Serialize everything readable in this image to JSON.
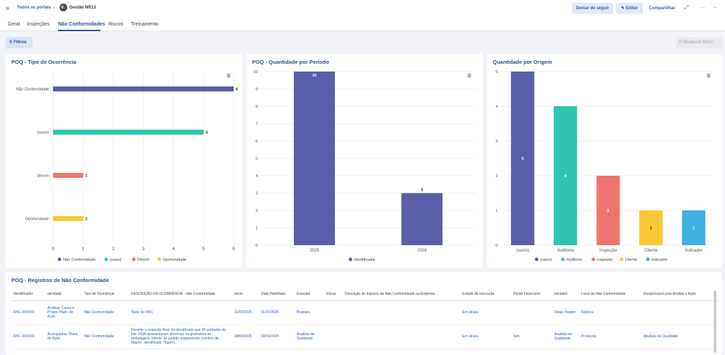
{
  "topbar": {
    "breadcrumb_root": "Todos os portais",
    "breadcrumb_current": "Gestão NR13",
    "follow_label": "Deixar de seguir",
    "edit_label": "Editar",
    "share_label": "Compartilhar"
  },
  "tabs": [
    "Geral",
    "Inspeções",
    "Não Conformidades",
    "Riscos",
    "Treinamento"
  ],
  "active_tab": "Não Conformidades",
  "toolbar": {
    "filters_label": "Filtros",
    "restore_label": "Restaurar filtros"
  },
  "chart_data": [
    {
      "type": "bar",
      "orientation": "horizontal",
      "title": "POQ - Tipo de Ocorrência",
      "categories": [
        "Não Conformidade",
        "(vazio)",
        "Desvio",
        "Oportunidade"
      ],
      "values": [
        6,
        5,
        1,
        1
      ],
      "colors": [
        "#5b5ea8",
        "#2fc6b0",
        "#ef7670",
        "#fbc633"
      ],
      "xlim": [
        0,
        6
      ],
      "xticks": [
        0,
        1,
        2,
        3,
        4,
        5,
        6
      ],
      "legend": [
        "Não Conformidade",
        "(vazio)",
        "Desvio",
        "Oportunidade"
      ],
      "legend_position": "bottom",
      "grid": true
    },
    {
      "type": "bar",
      "title": "POQ - Quantidade por Período",
      "categories": [
        "2025",
        "2026"
      ],
      "series": [
        {
          "name": "Identificador",
          "values": [
            10,
            3
          ]
        }
      ],
      "colors": [
        "#5b5ea8"
      ],
      "ylim": [
        0,
        10
      ],
      "yticks": [
        0,
        1,
        2,
        3,
        4,
        5,
        6,
        7,
        8,
        9,
        10
      ],
      "legend_position": "bottom",
      "grid": true
    },
    {
      "type": "bar",
      "title": "Quantidade por Origem",
      "categories": [
        "(vazio)",
        "Auditoria",
        "Inspeção",
        "Cliente",
        "Indicador"
      ],
      "values": [
        5,
        4,
        2,
        1,
        1
      ],
      "colors": [
        "#5b5ea8",
        "#2fc6b0",
        "#ef7670",
        "#fbc633",
        "#3fb1e3"
      ],
      "ylim": [
        0,
        5
      ],
      "yticks": [
        0,
        1,
        2,
        3,
        4,
        5
      ],
      "legend": [
        "(vazio)",
        "Auditoria",
        "Inspeção",
        "Cliente",
        "Indicador"
      ],
      "legend_position": "bottom",
      "grid": true
    }
  ],
  "table": {
    "title": "POQ - Registros de Não Conformidade",
    "columns": [
      "Identificador",
      "atividade",
      "Tipo de Ocorrência",
      "DESCRIÇÃO DA OCORRÊNCIA - Não Conformidade",
      "Início",
      "Data Habilitada",
      "Executor",
      "Eficaz",
      "Descrição do Impacto da Não Conformidade na Empresa",
      "Estado da execução",
      "Perda Financeira",
      "Iniciador",
      "Local da Não Conformidade",
      "Responsavel pela Análise e Ação"
    ],
    "rows": [
      [
        "RNC-000003",
        "Analisar Causa e Propor Plano de Ação",
        "Não Conformidade",
        "Teste de RNC",
        "11/03/2025",
        "11/03/2025",
        "Brasiara",
        "",
        "",
        "Em atraso",
        "",
        "Diogo Pappin",
        "Fábrica",
        ""
      ],
      [
        "RNC-000019",
        "Acompanhar Plano de Ação",
        "Não Conformidade",
        "Durante a inspeção final, foi identificado que 30 unidades do lote 243A apresentaram diferença na gramatura da embalagem, inferior ao padrão estabelecido (mínimo de 90g/m², identificado 75g/m²).",
        "18/04/2025",
        "18/04/2025",
        "Analista da Qualidade",
        "",
        "",
        "Em atraso",
        "Sim",
        "Analista da Qualidade",
        "Produção",
        "Analista da Qualidade"
      ]
    ]
  }
}
